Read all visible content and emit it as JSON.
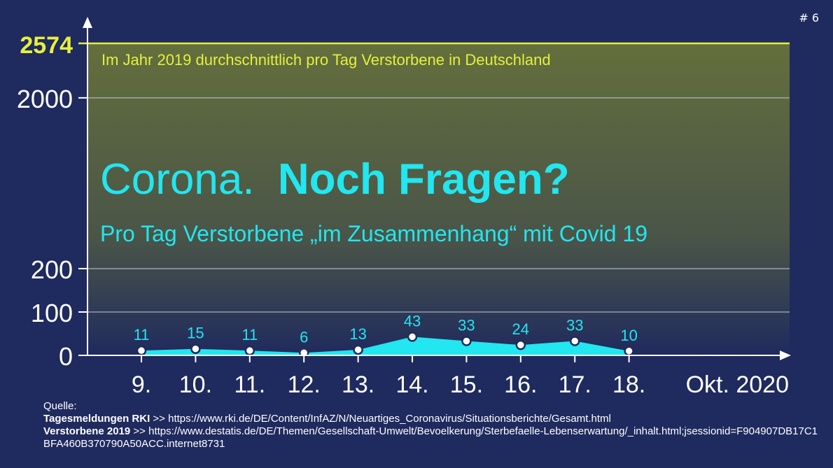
{
  "page_number": "# 6",
  "colors": {
    "background": "#1f2a5e",
    "accent_cyan": "#22e6f0",
    "reference_line": "#e6f03c",
    "grid": "#c8cbd8",
    "panel_top": "#636f3c",
    "panel_bottom": "#1f2a5e"
  },
  "chart_data": {
    "type": "area",
    "title_light": "Corona.",
    "title_bold": "Noch Fragen?",
    "subtitle": "Pro Tag Verstorbene „im Zusammenhang“ mit Covid 19",
    "x_unit_label": "Okt. 2020",
    "categories": [
      "9.",
      "10.",
      "11.",
      "12.",
      "13.",
      "14.",
      "15.",
      "16.",
      "17.",
      "18."
    ],
    "series": [
      {
        "values": [
          11,
          15,
          11,
          6,
          13,
          43,
          33,
          24,
          33,
          10
        ]
      }
    ],
    "y_ticks": [
      "0",
      "100",
      "200",
      "2000"
    ],
    "axis_break": "between 200 and 2000",
    "grid": true,
    "reference_line": {
      "value": 2574,
      "value_label": "2574",
      "label": "Im Jahr 2019 durchschnittlich pro Tag Verstorbene in Deutschland"
    }
  },
  "sources": {
    "heading": "Quelle:",
    "items": [
      {
        "name": "Tagesmeldungen RKI",
        "separator": " >> ",
        "url": "https://www.rki.de/DE/Content/InfAZ/N/Neuartiges_Coronavirus/Situationsberichte/Gesamt.html"
      },
      {
        "name": "Verstorbene 2019",
        "separator": " >> ",
        "url": "https://www.destatis.de/DE/Themen/Gesellschaft-Umwelt/Bevoelkerung/Sterbefaelle-Lebenserwartung/_inhalt.html;jsessionid=F904907DB17C1BFA460B370790A50ACC.internet8731"
      }
    ]
  }
}
